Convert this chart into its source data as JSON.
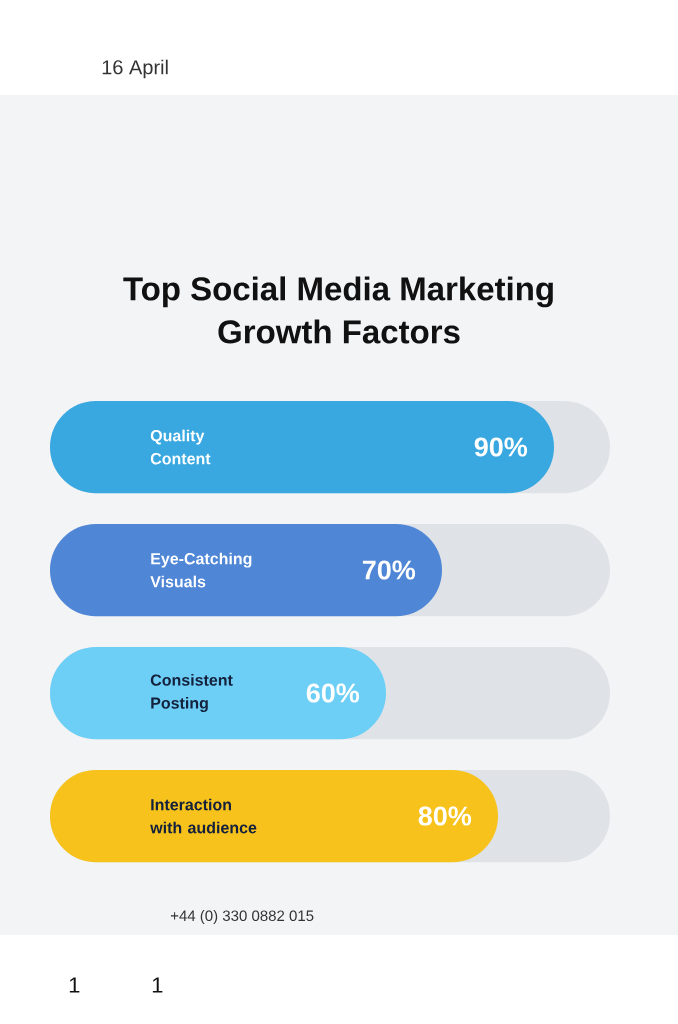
{
  "chart_data": {
    "type": "bar",
    "orientation": "horizontal",
    "title": "Top Social Media Marketing Growth Factors",
    "categories": [
      "Quality Content",
      "Eye-Catching Visuals",
      "Consistent Posting",
      "Interaction with audience"
    ],
    "values": [
      90,
      70,
      60,
      80
    ],
    "value_labels": [
      "90%",
      "70%",
      "60%",
      "80%"
    ],
    "colors": [
      "#3aa8e0",
      "#4f86d6",
      "#6dcff6",
      "#f7c21b"
    ],
    "xlim": [
      0,
      100
    ],
    "annotations": [
      "16 April",
      "+44 (0) 330 0882 015",
      "1",
      "1"
    ]
  }
}
